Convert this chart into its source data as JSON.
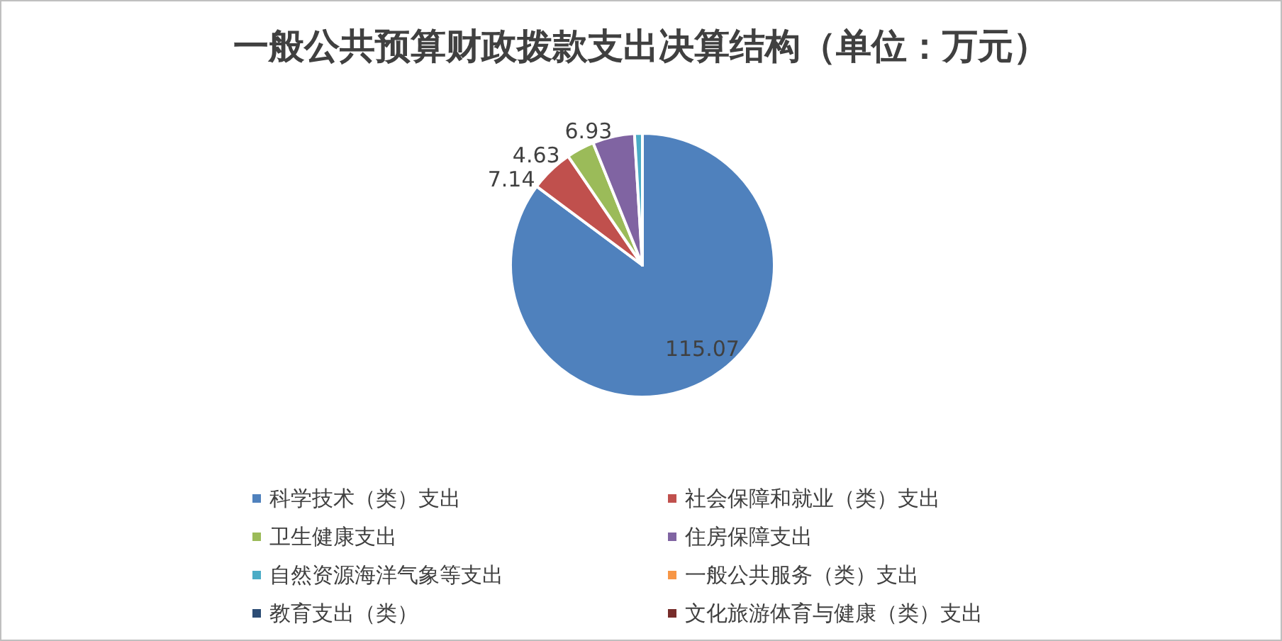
{
  "chart_data": {
    "type": "pie",
    "title": "一般公共预算财政拨款支出决算结构（单位：万元）",
    "categories": [
      "科学技术（类）支出",
      "社会保障和就业（类）支出",
      "卫生健康支出",
      "住房保障支出",
      "自然资源海洋气象等支出",
      "一般公共服务（类）支出",
      "教育支出（类）",
      "文化旅游体育与健康（类）支出"
    ],
    "values": [
      115.07,
      7.14,
      4.63,
      6.93,
      1.3,
      0,
      0,
      0
    ],
    "value_labels": [
      "115.07",
      "7.14",
      "4.63",
      "6.93",
      null,
      null,
      null,
      null
    ],
    "colors": [
      "#4f81bd",
      "#c0504d",
      "#9bbb59",
      "#8064a2",
      "#4bacc6",
      "#f79646",
      "#2c4d75",
      "#772c2a"
    ],
    "legend": "bottom"
  }
}
